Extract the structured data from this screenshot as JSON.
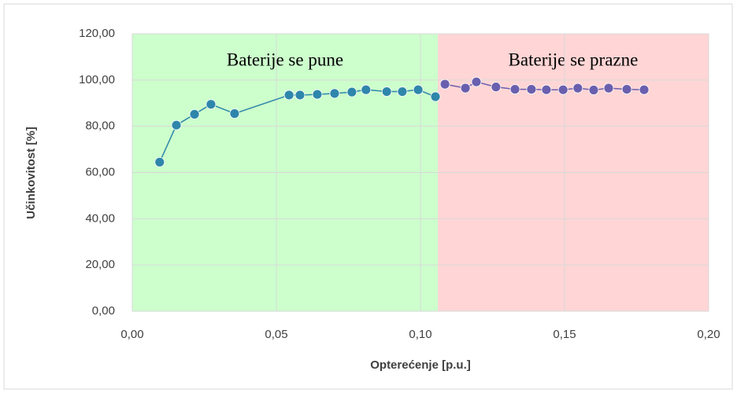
{
  "chart_data": {
    "type": "scatter",
    "xlabel": "Opterećenje [p.u.]",
    "ylabel": "Učinkovitost [%]",
    "xlim": [
      0,
      0.2
    ],
    "xticks": [
      {
        "value": 0,
        "label": "0,00"
      },
      {
        "value": 0.05,
        "label": "0,05"
      },
      {
        "value": 0.1,
        "label": "0,10"
      },
      {
        "value": 0.15,
        "label": "0,15"
      },
      {
        "value": 0.2,
        "label": "0,20"
      }
    ],
    "ylim": [
      0,
      120
    ],
    "yticks": [
      {
        "value": 0,
        "label": "0,00"
      },
      {
        "value": 20,
        "label": "20,00"
      },
      {
        "value": 40,
        "label": "40,00"
      },
      {
        "value": 60,
        "label": "60,00"
      },
      {
        "value": 80,
        "label": "80,00"
      },
      {
        "value": 100,
        "label": "100,00"
      },
      {
        "value": 120,
        "label": "120,00"
      }
    ],
    "grid": true,
    "regions": [
      {
        "label": "Baterije se pune",
        "x": [
          0,
          0.106
        ],
        "color": "#ccffcc"
      },
      {
        "label": "Baterije se prazne",
        "x": [
          0.106,
          0.2
        ],
        "color": "#ffd5d5"
      }
    ],
    "series": [
      {
        "color": "#2e86ab",
        "x": [
          0.0095,
          0.0153,
          0.0216,
          0.0273,
          0.0355,
          0.0544,
          0.0582,
          0.0642,
          0.0702,
          0.0762,
          0.0811,
          0.0883,
          0.0937,
          0.0992,
          0.1052
        ],
        "values": [
          64.5,
          80.5,
          85.2,
          89.5,
          85.5,
          93.5,
          93.5,
          93.8,
          94.2,
          94.8,
          95.8,
          95,
          95,
          95.8,
          92.8
        ]
      },
      {
        "color": "#6a5fae",
        "x": [
          0.1085,
          0.1156,
          0.1194,
          0.1262,
          0.1328,
          0.1385,
          0.1437,
          0.1495,
          0.1546,
          0.1601,
          0.1653,
          0.1716,
          0.1776
        ],
        "values": [
          98.2,
          96.5,
          99.2,
          97,
          96,
          96,
          95.8,
          95.8,
          96.5,
          95.7,
          96.5,
          96,
          95.8
        ]
      }
    ]
  }
}
